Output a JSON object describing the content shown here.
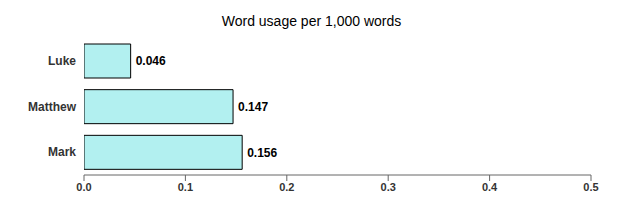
{
  "chart_data": {
    "type": "bar",
    "title": "Word usage per 1,000 words",
    "categories": [
      "Luke",
      "Matthew",
      "Mark"
    ],
    "values": [
      0.046,
      0.147,
      0.156
    ],
    "color": "#b2f0f0",
    "orientation": "horizontal",
    "xlim": [
      0,
      0.5
    ],
    "xticks": [
      {
        "value": 0,
        "label": "0.0"
      },
      0.1,
      0.2,
      0.3,
      0.4,
      0.5
    ],
    "data_labels": true,
    "grid": false
  }
}
